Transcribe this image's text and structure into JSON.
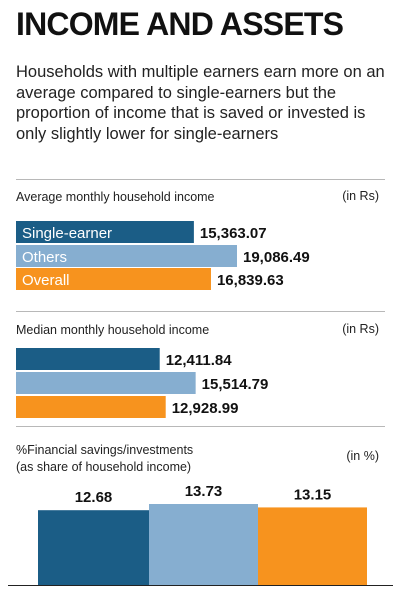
{
  "title": "INCOME AND ASSETS",
  "subtitle": "Households with multiple earners earn more on an average compared to single-earners but the proportion of income that is saved or invested is only slightly lower for single-earners",
  "colors": {
    "single_earner": "#1b5d86",
    "others": "#86aed0",
    "overall": "#f7931e"
  },
  "chart_data": [
    {
      "type": "bar",
      "orientation": "horizontal",
      "title": "Average monthly household income",
      "unit": "(in Rs)",
      "categories": [
        "Single-earner",
        "Others",
        "Overall"
      ],
      "category_labels_shown": [
        "Single-earner",
        "Others",
        "Overall"
      ],
      "values": [
        15363.07,
        19086.49,
        16839.63
      ],
      "value_labels": [
        "15,363.07",
        "19,086.49",
        "16,839.63"
      ],
      "xlim": [
        0,
        19086.49
      ]
    },
    {
      "type": "bar",
      "orientation": "horizontal",
      "title": "Median monthly household income",
      "unit": "(in Rs)",
      "categories": [
        "Single-earner",
        "Others",
        "Overall"
      ],
      "values": [
        12411.84,
        15514.79,
        12928.99
      ],
      "value_labels": [
        "12,411.84",
        "15,514.79",
        "12,928.99"
      ],
      "xlim": [
        0,
        19086.49
      ]
    },
    {
      "type": "bar",
      "orientation": "vertical",
      "title": "%Financial savings/investments",
      "title_line2": "(as share of household income)",
      "unit": "(in %)",
      "categories": [
        "Single-earner",
        "Others",
        "Overall"
      ],
      "values": [
        12.68,
        13.73,
        13.15
      ],
      "value_labels": [
        "12.68",
        "13.73",
        "13.15"
      ]
    }
  ]
}
